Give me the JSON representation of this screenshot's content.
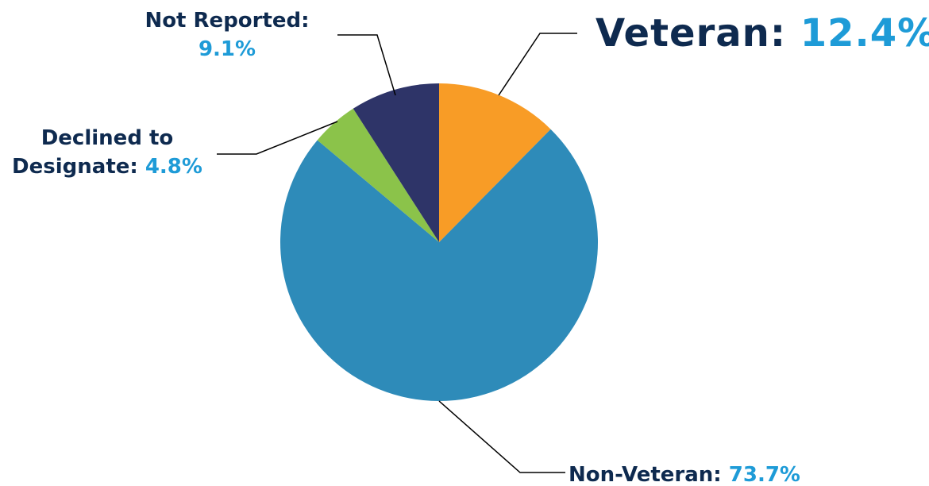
{
  "chart_data": {
    "type": "pie",
    "title": "",
    "slices": [
      {
        "label": "Veteran:",
        "value": 12.4,
        "value_label": "12.4%",
        "color": "#f89c26"
      },
      {
        "label": "Non-Veteran:",
        "value": 73.7,
        "value_label": "73.7%",
        "color": "#2e8bb9"
      },
      {
        "label": "Declined to Designate:",
        "value": 4.8,
        "value_label": "4.8%",
        "color": "#8bc34a"
      },
      {
        "label": "Not Reported:",
        "value": 9.1,
        "value_label": "9.1%",
        "color": "#2e3468"
      }
    ],
    "start_angle_deg": 0,
    "direction": "clockwise",
    "label_color": "#0e2a4f",
    "percent_color": "#1e9bd7"
  },
  "labels": {
    "veteran_name": "Veteran:",
    "veteran_pct": "12.4%",
    "nonvet_name": "Non-Veteran:",
    "nonvet_pct": "73.7%",
    "declined_line1": "Declined to",
    "declined_line2": "Designate:",
    "declined_pct": "4.8%",
    "notrep_name": "Not Reported:",
    "notrep_pct": "9.1%"
  }
}
